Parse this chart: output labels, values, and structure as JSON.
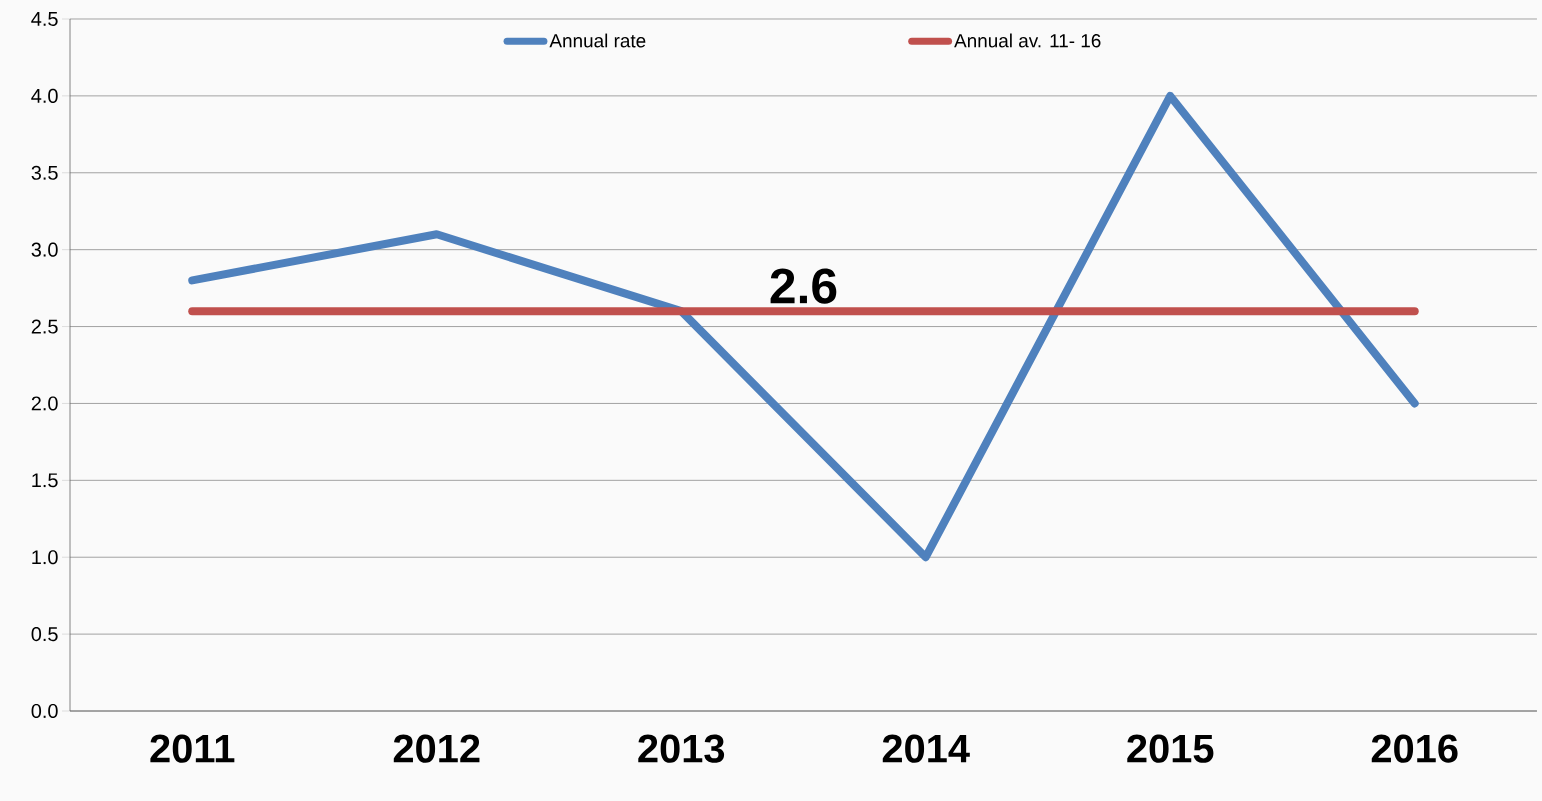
{
  "chart_data": {
    "type": "line",
    "categories": [
      "2011",
      "2012",
      "2013",
      "2014",
      "2015",
      "2016"
    ],
    "series": [
      {
        "name": "Annual rate",
        "color": "#4f81bd",
        "values": [
          2.8,
          3.1,
          2.6,
          1.0,
          4.0,
          2.0
        ]
      },
      {
        "name": "Annual av. 11- 16",
        "color": "#c0504d",
        "values": [
          2.6,
          2.6,
          2.6,
          2.6,
          2.6,
          2.6
        ]
      }
    ],
    "annotations": [
      {
        "text": "2.6",
        "y": 2.6
      }
    ],
    "ylim": [
      0,
      4.5
    ],
    "yticks": [
      {
        "value": 0,
        "label": "0.0"
      },
      {
        "value": 0.5,
        "label": "0.5"
      },
      {
        "value": 1,
        "label": "1.0"
      },
      {
        "value": 1.5,
        "label": "1.5"
      },
      {
        "value": 2,
        "label": "2.0"
      },
      {
        "value": 2.5,
        "label": "2.5"
      },
      {
        "value": 3,
        "label": "3.0"
      },
      {
        "value": 3.5,
        "label": "3.5"
      },
      {
        "value": 4,
        "label": "4.0"
      },
      {
        "value": 4.5,
        "label": "4.5"
      }
    ],
    "grid": "y",
    "legend": "top",
    "marker": "none",
    "line_style": "solid"
  }
}
